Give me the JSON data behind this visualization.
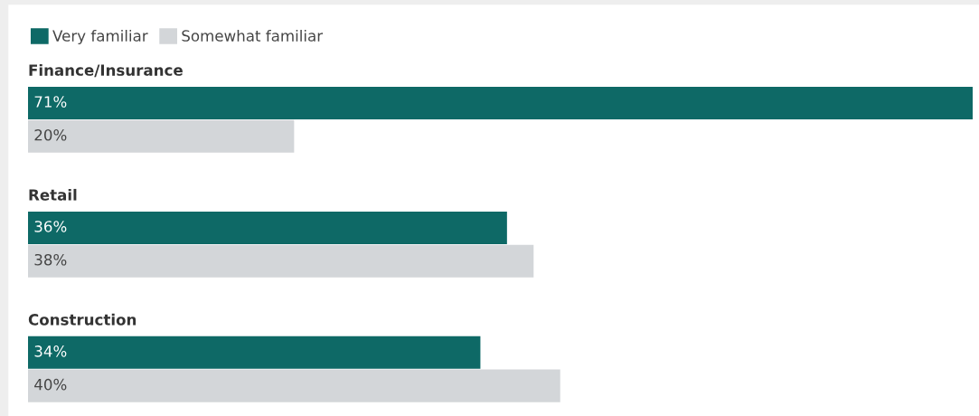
{
  "chart_data": {
    "type": "bar",
    "orientation": "horizontal",
    "categories": [
      "Finance/Insurance",
      "Retail",
      "Construction"
    ],
    "series": [
      {
        "name": "Very familiar",
        "color": "#0e6966",
        "values": [
          71,
          36,
          34
        ],
        "value_labels": [
          "71%",
          "36%",
          "34%"
        ]
      },
      {
        "name": "Somewhat familiar",
        "color": "#d3d6d9",
        "values": [
          20,
          38,
          40
        ],
        "value_labels": [
          "20%",
          "38%",
          "40%"
        ]
      }
    ],
    "legend": "top left",
    "grid": false,
    "tick_labels": false
  }
}
